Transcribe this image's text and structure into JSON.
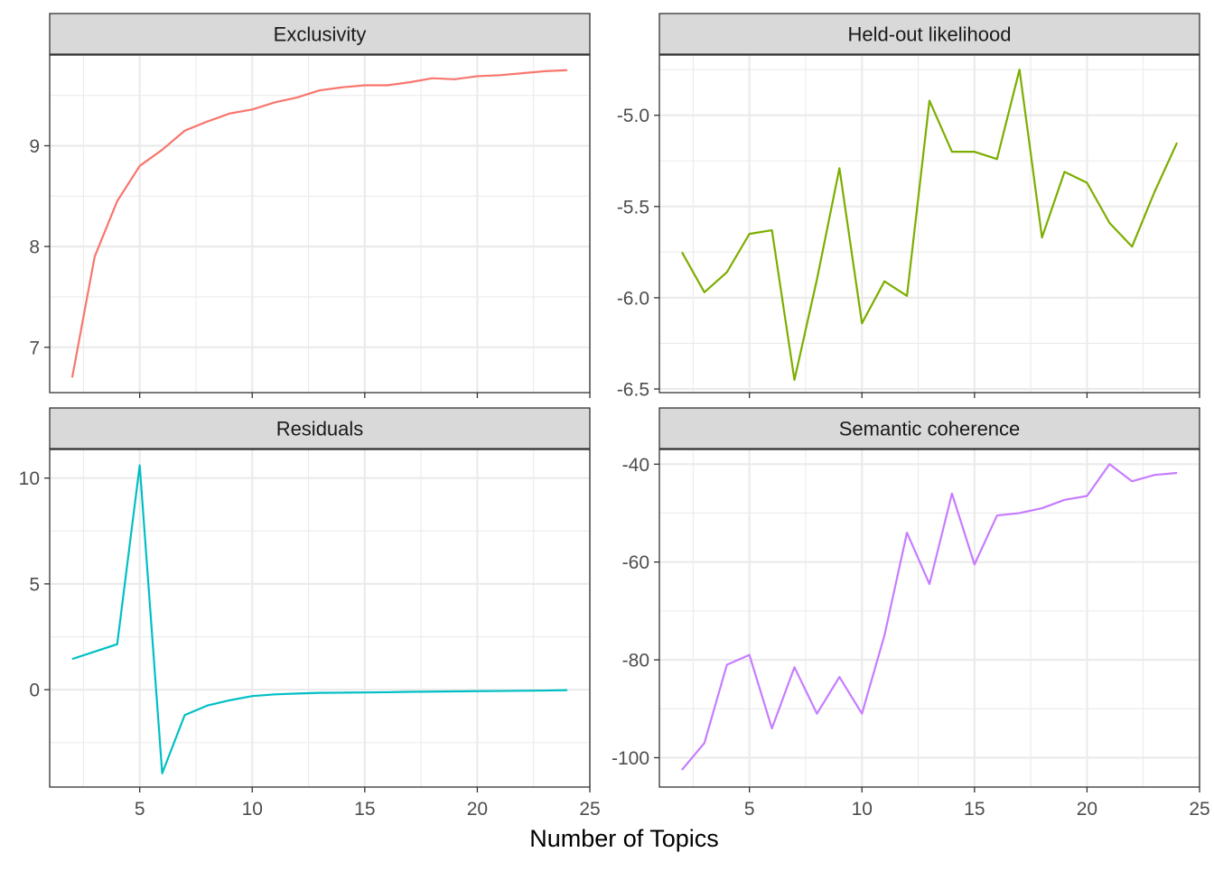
{
  "chart_data": {
    "xlabel": "Number of Topics",
    "panels": [
      {
        "title": "Exclusivity",
        "type": "line",
        "color": "#F8766D",
        "xlim": [
          1,
          25
        ],
        "ylim": [
          6.55,
          9.9
        ],
        "x_ticks": [
          5,
          10,
          15,
          20,
          25
        ],
        "y_ticks": [
          7,
          8,
          9
        ],
        "y_tick_labels": [
          "7",
          "8",
          "9"
        ],
        "x": [
          2,
          3,
          4,
          5,
          6,
          7,
          8,
          9,
          10,
          11,
          12,
          13,
          14,
          15,
          16,
          17,
          18,
          19,
          20,
          21,
          22,
          23,
          24
        ],
        "y": [
          6.7,
          7.9,
          8.45,
          8.8,
          8.96,
          9.15,
          9.24,
          9.32,
          9.36,
          9.43,
          9.48,
          9.55,
          9.58,
          9.6,
          9.6,
          9.63,
          9.67,
          9.66,
          9.69,
          9.7,
          9.72,
          9.74,
          9.75
        ]
      },
      {
        "title": "Held-out likelihood",
        "type": "line",
        "color": "#7CAE00",
        "xlim": [
          1,
          25
        ],
        "ylim": [
          -6.52,
          -4.67
        ],
        "x_ticks": [
          5,
          10,
          15,
          20,
          25
        ],
        "y_ticks": [
          -6.5,
          -6.0,
          -5.5,
          -5.0
        ],
        "y_tick_labels": [
          "-6.5",
          "-6.0",
          "-5.5",
          "-5.0"
        ],
        "x": [
          2,
          3,
          4,
          5,
          6,
          7,
          8,
          9,
          10,
          11,
          12,
          13,
          14,
          15,
          16,
          17,
          18,
          19,
          20,
          21,
          22,
          23,
          24
        ],
        "y": [
          -5.75,
          -5.97,
          -5.86,
          -5.65,
          -5.63,
          -6.45,
          -5.9,
          -5.29,
          -6.14,
          -5.91,
          -5.99,
          -4.92,
          -5.2,
          -5.2,
          -5.24,
          -4.75,
          -5.67,
          -5.31,
          -5.37,
          -5.59,
          -5.72,
          -5.42,
          -5.15
        ]
      },
      {
        "title": "Residuals",
        "type": "line",
        "color": "#00BFC4",
        "xlim": [
          1,
          25
        ],
        "ylim": [
          -4.6,
          11.35
        ],
        "x_ticks": [
          5,
          10,
          15,
          20,
          25
        ],
        "y_ticks": [
          0,
          5,
          10
        ],
        "y_tick_labels": [
          "0",
          "5",
          "10"
        ],
        "x": [
          2,
          3,
          4,
          5,
          6,
          7,
          8,
          9,
          10,
          11,
          12,
          13,
          14,
          15,
          16,
          17,
          18,
          19,
          20,
          21,
          22,
          23,
          24
        ],
        "y": [
          1.45,
          1.8,
          2.15,
          10.6,
          -3.95,
          -1.2,
          -0.75,
          -0.5,
          -0.3,
          -0.22,
          -0.18,
          -0.15,
          -0.14,
          -0.13,
          -0.12,
          -0.1,
          -0.09,
          -0.08,
          -0.07,
          -0.06,
          -0.05,
          -0.04,
          -0.02
        ]
      },
      {
        "title": "Semantic coherence",
        "type": "line",
        "color": "#C77CFF",
        "xlim": [
          1,
          25
        ],
        "ylim": [
          -106,
          -37
        ],
        "x_ticks": [
          5,
          10,
          15,
          20,
          25
        ],
        "y_ticks": [
          -100,
          -80,
          -60,
          -40
        ],
        "y_tick_labels": [
          "-100",
          "-80",
          "-60",
          "-40"
        ],
        "x": [
          2,
          3,
          4,
          5,
          6,
          7,
          8,
          9,
          10,
          11,
          12,
          13,
          14,
          15,
          16,
          17,
          18,
          19,
          20,
          21,
          22,
          23,
          24
        ],
        "y": [
          -102.5,
          -97,
          -81,
          -79,
          -94,
          -81.5,
          -91,
          -83.5,
          -91,
          -75,
          -54,
          -64.5,
          -46,
          -60.5,
          -50.5,
          -50,
          -49,
          -47.3,
          -46.5,
          -40,
          -43.5,
          -42.2,
          -41.8
        ]
      }
    ],
    "grid": true,
    "legend": "none"
  }
}
